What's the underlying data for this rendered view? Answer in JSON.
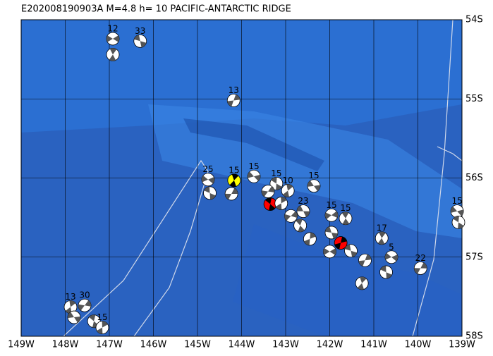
{
  "chart_data": {
    "type": "map",
    "title": "E202008190903A  M=4.8  h= 10  PACIFIC-ANTARCTIC RIDGE",
    "xlim": [
      -149,
      -139
    ],
    "ylim": [
      -58,
      -54
    ],
    "xticks": [
      {
        "value": -149,
        "label": "149W"
      },
      {
        "value": -148,
        "label": "148W"
      },
      {
        "value": -147,
        "label": "147W"
      },
      {
        "value": -146,
        "label": "146W"
      },
      {
        "value": -145,
        "label": "145W"
      },
      {
        "value": -144,
        "label": "144W"
      },
      {
        "value": -143,
        "label": "143W"
      },
      {
        "value": -142,
        "label": "142W"
      },
      {
        "value": -141,
        "label": "141W"
      },
      {
        "value": -140,
        "label": "140W"
      },
      {
        "value": -139,
        "label": "139W"
      }
    ],
    "yticks": [
      {
        "value": -54,
        "label": "54S"
      },
      {
        "value": -55,
        "label": "55S"
      },
      {
        "value": -56,
        "label": "56S"
      },
      {
        "value": -57,
        "label": "57S"
      },
      {
        "value": -58,
        "label": "58S"
      }
    ],
    "grid": true,
    "events": [
      {
        "label": "12",
        "lon": -146.92,
        "lat": -54.24
      },
      {
        "label": "33",
        "lon": -146.3,
        "lat": -54.27
      },
      {
        "lon": -146.92,
        "lat": -54.44
      },
      {
        "label": "13",
        "lon": -144.18,
        "lat": -55.02
      },
      {
        "label": "25",
        "lon": -144.76,
        "lat": -56.02
      },
      {
        "lon": -144.72,
        "lat": -56.19
      },
      {
        "label": "15",
        "lon": -144.17,
        "lat": -56.03,
        "color": "#ffff00"
      },
      {
        "lon": -144.23,
        "lat": -56.2
      },
      {
        "label": "15",
        "lon": -143.72,
        "lat": -55.98
      },
      {
        "label": "15",
        "lon": -143.21,
        "lat": -56.07
      },
      {
        "label": "10",
        "lon": -142.95,
        "lat": -56.16
      },
      {
        "lon": -143.4,
        "lat": -56.17
      },
      {
        "label": "15",
        "lon": -142.36,
        "lat": -56.1
      },
      {
        "lon": -143.35,
        "lat": -56.33,
        "color": "#ff0000"
      },
      {
        "lon": -143.1,
        "lat": -56.32
      },
      {
        "lon": -142.88,
        "lat": -56.48
      },
      {
        "label": "23",
        "lon": -142.6,
        "lat": -56.42
      },
      {
        "lon": -142.67,
        "lat": -56.6
      },
      {
        "lon": -142.45,
        "lat": -56.77
      },
      {
        "label": "15",
        "lon": -141.96,
        "lat": -56.47
      },
      {
        "lon": -141.96,
        "lat": -56.69
      },
      {
        "label": "15",
        "lon": -141.64,
        "lat": -56.51
      },
      {
        "lon": -141.75,
        "lat": -56.82,
        "color": "#ff0000"
      },
      {
        "lon": -142.0,
        "lat": -56.93
      },
      {
        "lon": -141.52,
        "lat": -56.92
      },
      {
        "label": "17",
        "lon": -140.82,
        "lat": -56.76
      },
      {
        "lon": -141.2,
        "lat": -57.04
      },
      {
        "label": "5",
        "lon": -140.6,
        "lat": -57.0
      },
      {
        "lon": -140.72,
        "lat": -57.19
      },
      {
        "lon": -141.27,
        "lat": -57.33
      },
      {
        "label": "22",
        "lon": -139.94,
        "lat": -57.14
      },
      {
        "label": "15",
        "lon": -139.11,
        "lat": -56.42
      },
      {
        "lon": -139.08,
        "lat": -56.56
      },
      {
        "label": "13",
        "lon": -147.88,
        "lat": -57.63
      },
      {
        "label": "30",
        "lon": -147.56,
        "lat": -57.61
      },
      {
        "lon": -147.8,
        "lat": -57.76
      },
      {
        "lon": -147.35,
        "lat": -57.81
      },
      {
        "label": "15",
        "lon": -147.16,
        "lat": -57.89
      }
    ]
  }
}
